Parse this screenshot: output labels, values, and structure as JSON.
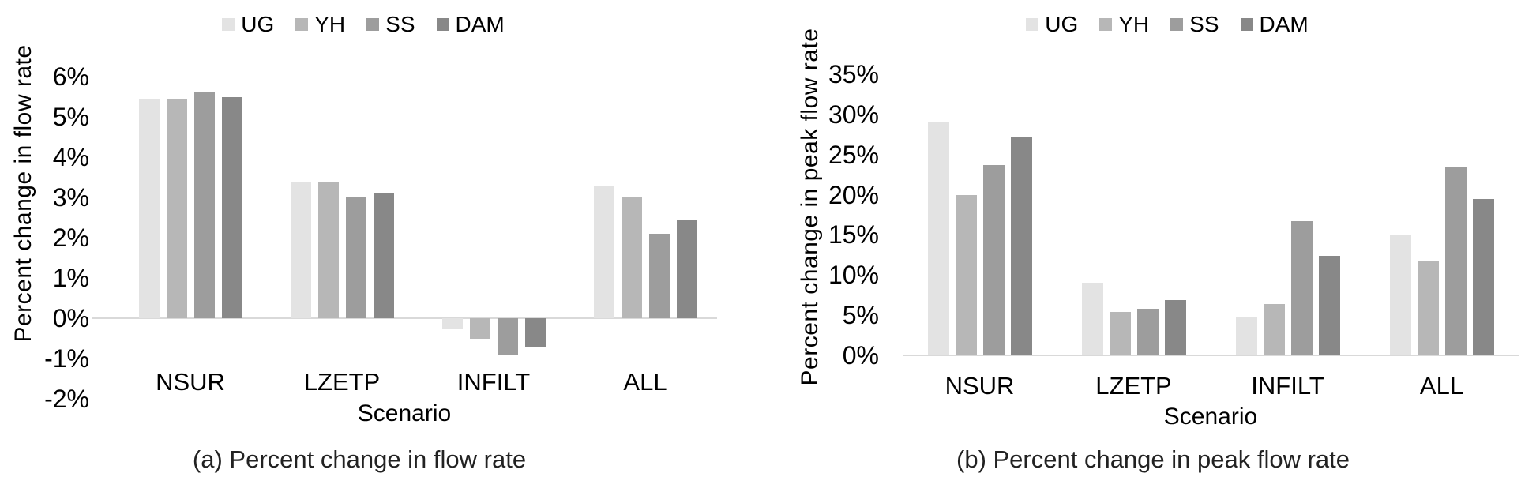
{
  "figure": {
    "series_names": [
      "UG",
      "YH",
      "SS",
      "DAM"
    ],
    "series_colors": [
      "#e3e3e3",
      "#b7b7b7",
      "#9d9d9d",
      "#888888"
    ],
    "baseline_color": "#d9d9d9"
  },
  "chart_data": [
    {
      "type": "bar",
      "title": "(a) Percent change in flow rate",
      "xlabel": "Scenario",
      "ylabel": "Percent change in flow rate",
      "categories": [
        "NSUR",
        "LZETP",
        "INFILT",
        "ALL"
      ],
      "series": [
        {
          "name": "UG",
          "color": "#e3e3e3",
          "values": [
            5.45,
            3.4,
            -0.25,
            3.3
          ]
        },
        {
          "name": "YH",
          "color": "#b7b7b7",
          "values": [
            5.45,
            3.4,
            -0.5,
            3.0
          ]
        },
        {
          "name": "SS",
          "color": "#9d9d9d",
          "values": [
            5.6,
            3.0,
            -0.9,
            2.1
          ]
        },
        {
          "name": "DAM",
          "color": "#888888",
          "values": [
            5.5,
            3.1,
            -0.7,
            2.45
          ]
        }
      ],
      "ylim": [
        -2,
        6
      ],
      "yticks": [
        {
          "label": "6%",
          "value": 6
        },
        {
          "label": "5%",
          "value": 5
        },
        {
          "label": "4%",
          "value": 4
        },
        {
          "label": "3%",
          "value": 3
        },
        {
          "label": "2%",
          "value": 2
        },
        {
          "label": "1%",
          "value": 1
        },
        {
          "label": "0%",
          "value": 0
        },
        {
          "label": "-1%",
          "value": -1
        },
        {
          "label": "-2%",
          "value": -2
        }
      ],
      "legend_position": "top",
      "grid": false
    },
    {
      "type": "bar",
      "title": "(b) Percent change in peak flow rate",
      "xlabel": "Scenario",
      "ylabel": "Percent change in peak flow rate",
      "categories": [
        "NSUR",
        "LZETP",
        "INFILT",
        "ALL"
      ],
      "series": [
        {
          "name": "UG",
          "color": "#e3e3e3",
          "values": [
            29,
            9,
            4.7,
            14.9
          ]
        },
        {
          "name": "YH",
          "color": "#b7b7b7",
          "values": [
            20,
            5.4,
            6.4,
            11.8
          ]
        },
        {
          "name": "SS",
          "color": "#9d9d9d",
          "values": [
            23.7,
            5.8,
            16.7,
            23.5
          ]
        },
        {
          "name": "DAM",
          "color": "#888888",
          "values": [
            27.1,
            6.9,
            12.4,
            19.5
          ]
        }
      ],
      "ylim": [
        0,
        35
      ],
      "yticks": [
        {
          "label": "35%",
          "value": 35
        },
        {
          "label": "30%",
          "value": 30
        },
        {
          "label": "25%",
          "value": 25
        },
        {
          "label": "20%",
          "value": 20
        },
        {
          "label": "15%",
          "value": 15
        },
        {
          "label": "10%",
          "value": 10
        },
        {
          "label": "5%",
          "value": 5
        },
        {
          "label": "0%",
          "value": 0
        }
      ],
      "legend_position": "top",
      "grid": false
    }
  ]
}
